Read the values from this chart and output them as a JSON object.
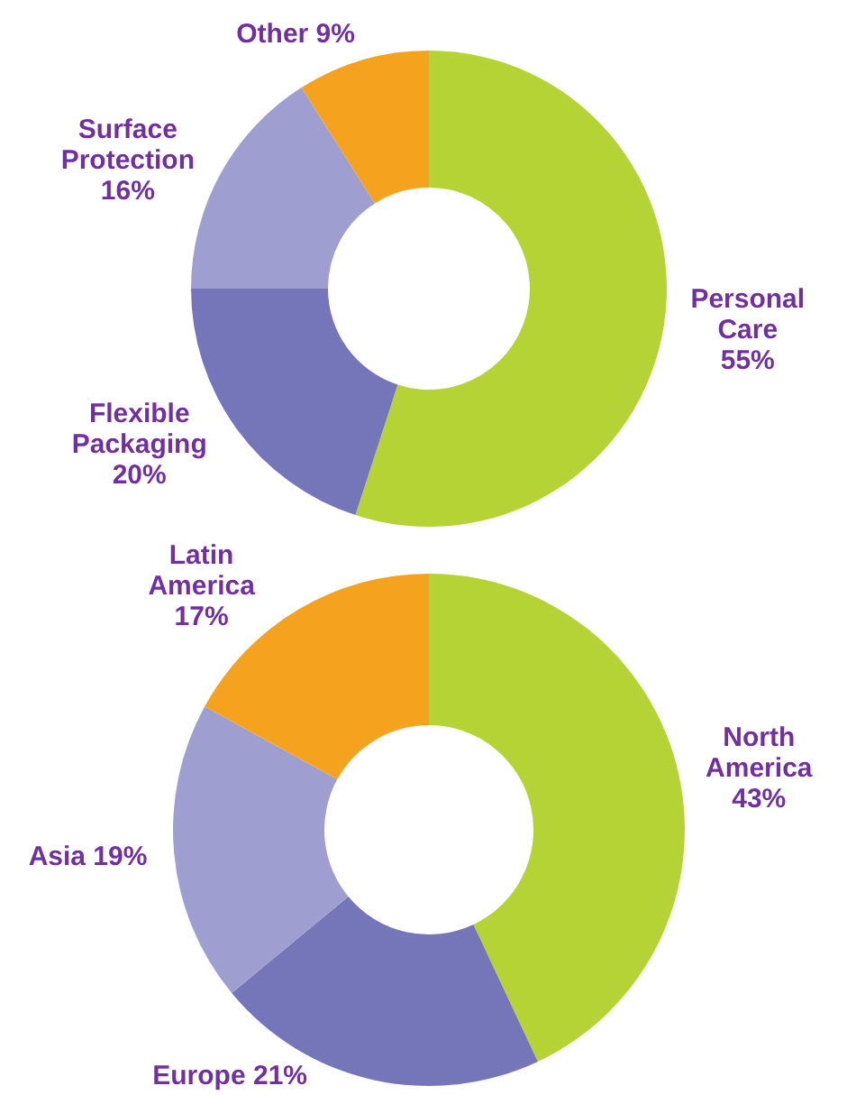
{
  "chart_data": [
    {
      "type": "donut",
      "categories": [
        "Personal Care",
        "Flexible Packaging",
        "Surface Protection",
        "Other"
      ],
      "values": [
        55,
        20,
        16,
        9
      ],
      "value_labels": [
        "55%",
        "20%",
        "16%",
        "9%"
      ],
      "colors": [
        "#b5d334",
        "#7575ba",
        "#9e9fd0",
        "#f5a31f"
      ]
    },
    {
      "type": "donut",
      "categories": [
        "North America",
        "Europe",
        "Asia",
        "Latin America"
      ],
      "values": [
        43,
        21,
        19,
        17
      ],
      "value_labels": [
        "43%",
        "21%",
        "19%",
        "17%"
      ],
      "colors": [
        "#b5d334",
        "#7575ba",
        "#9e9fd0",
        "#f5a31f"
      ]
    }
  ]
}
